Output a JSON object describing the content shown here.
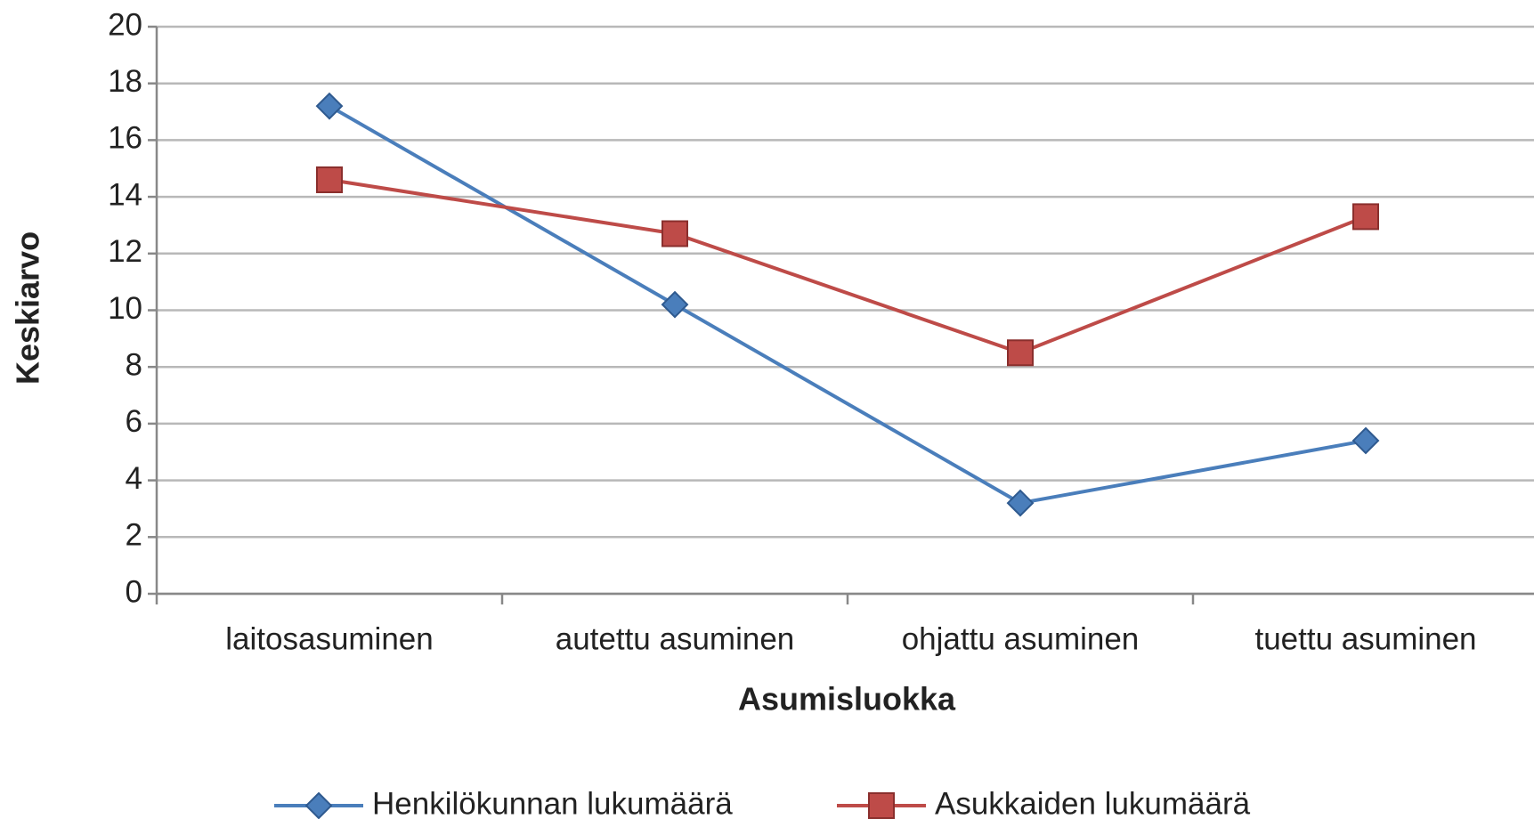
{
  "chart_data": {
    "type": "line",
    "x_label": "Asumisluokka",
    "y_label": "Keskiarvo",
    "categories": [
      "laitosasuminen",
      "autettu asuminen",
      "ohjattu asuminen",
      "tuettu asuminen"
    ],
    "series": [
      {
        "name": "Henkilökunnan lukumäärä",
        "color": "#4a7ebb",
        "marker": "diamond",
        "values": [
          17.2,
          10.2,
          3.2,
          5.4
        ]
      },
      {
        "name": "Asukkaiden lukumäärä",
        "color": "#be4b48",
        "marker": "square",
        "values": [
          14.6,
          12.7,
          8.5,
          13.3
        ]
      }
    ],
    "ylim": [
      0,
      20
    ],
    "yticks": [
      0,
      2,
      4,
      6,
      8,
      10,
      12,
      14,
      16,
      18,
      20
    ],
    "grid": true,
    "legend": "bottom"
  }
}
